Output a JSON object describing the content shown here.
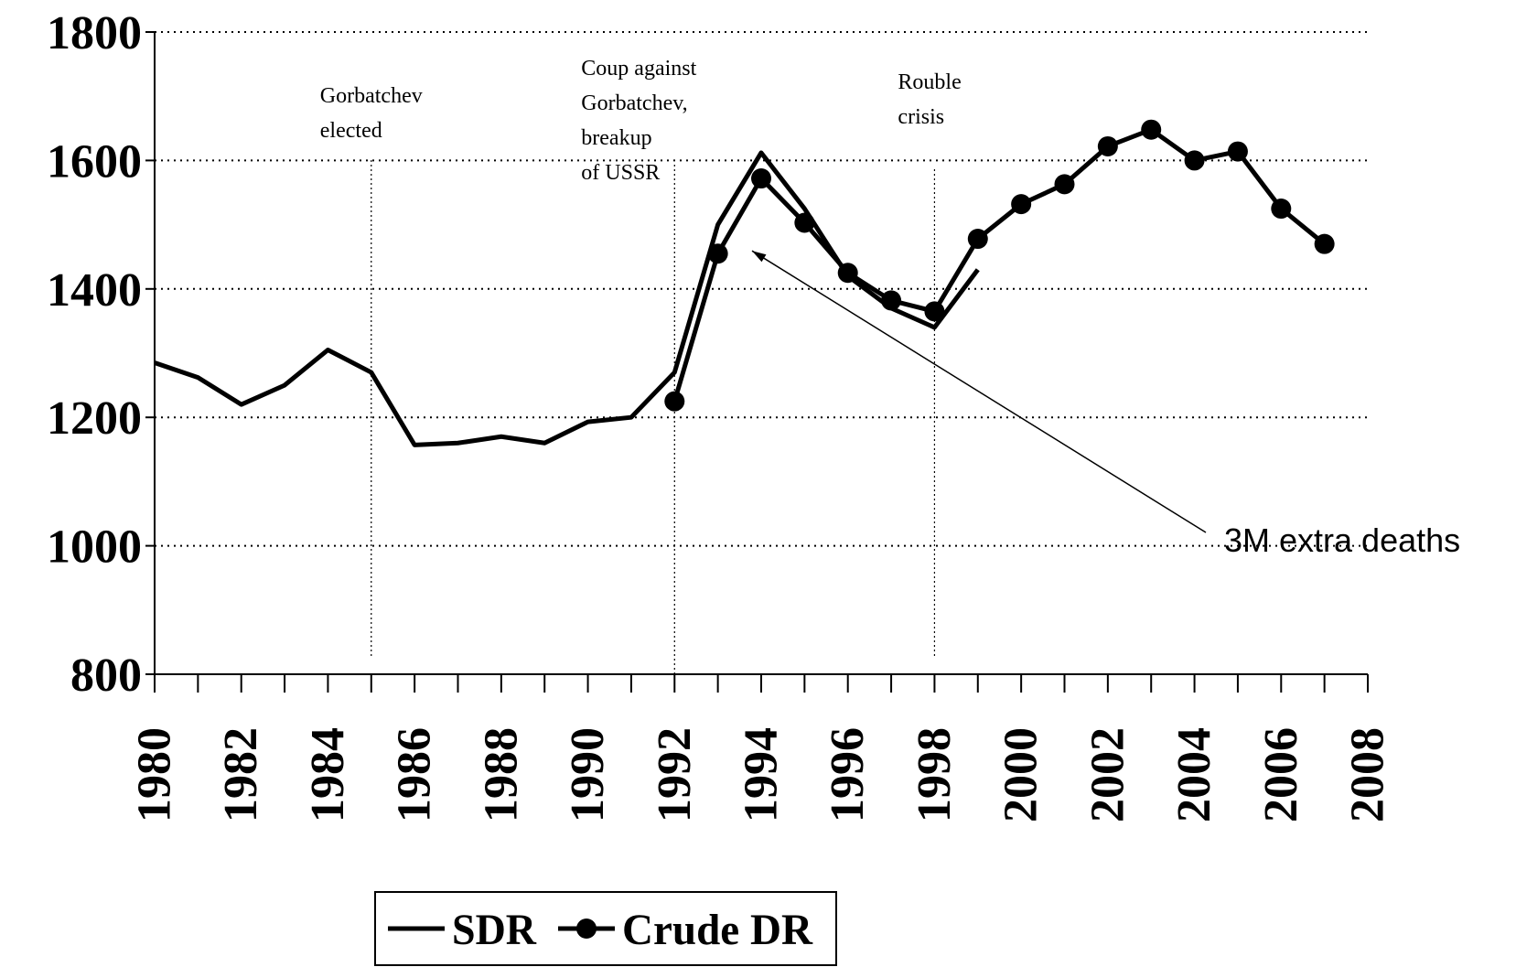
{
  "chart_data": {
    "type": "line",
    "xlim": [
      1980,
      2008
    ],
    "xticks": [
      1980,
      1982,
      1984,
      1986,
      1988,
      1990,
      1992,
      1994,
      1996,
      1998,
      2000,
      2002,
      2004,
      2006,
      2008
    ],
    "xminorticks": [
      1981,
      1983,
      1985,
      1987,
      1989,
      1991,
      1993,
      1995,
      1997,
      1999,
      2001,
      2003,
      2005,
      2007
    ],
    "ylim": [
      800,
      1800
    ],
    "yticks": [
      800,
      1000,
      1200,
      1400,
      1600,
      1800
    ],
    "grid": true,
    "series": [
      {
        "name": "SDR",
        "color": "#000000",
        "marker": false,
        "x": [
          1980,
          1981,
          1982,
          1983,
          1984,
          1985,
          1986,
          1987,
          1988,
          1989,
          1990,
          1991,
          1992,
          1993,
          1994,
          1995,
          1996,
          1997,
          1998,
          1999
        ],
        "values": [
          1285,
          1262,
          1220,
          1250,
          1305,
          1270,
          1157,
          1160,
          1170,
          1160,
          1193,
          1200,
          1270,
          1500,
          1612,
          1525,
          1420,
          1370,
          1340,
          1430
        ]
      },
      {
        "name": "Crude DR",
        "color": "#000000",
        "marker": true,
        "x": [
          1992,
          1993,
          1994,
          1995,
          1996,
          1997,
          1998,
          1999,
          2000,
          2001,
          2002,
          2003,
          2004,
          2005,
          2006,
          2007
        ],
        "values": [
          1225,
          1455,
          1572,
          1503,
          1425,
          1382,
          1365,
          1478,
          1532,
          1563,
          1622,
          1648,
          1600,
          1614,
          1525,
          1470
        ]
      }
    ],
    "annotations": [
      {
        "x": 1985,
        "lines": [
          "Gorbatchev",
          "elected"
        ]
      },
      {
        "x": 1992,
        "lines": [
          "Coup against",
          "Gorbatchev,",
          "breakup",
          "of USSR"
        ]
      },
      {
        "x": 1998,
        "lines": [
          "Rouble",
          "crisis"
        ]
      }
    ],
    "callout": "3M extra deaths",
    "legend": "bottom"
  }
}
